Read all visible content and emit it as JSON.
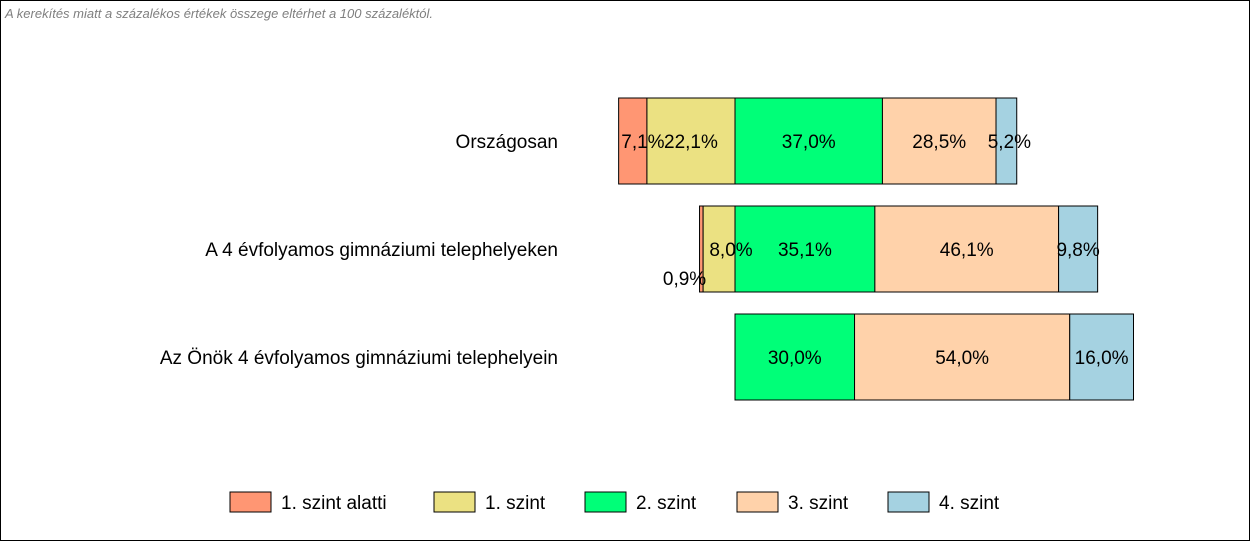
{
  "note": "A kerekítés miatt a  százalékos értékek összege eltérhet a 100 százaléktól.",
  "chart_data": {
    "type": "bar",
    "orientation": "horizontal",
    "stacked": true,
    "diverging": true,
    "categories": [
      "Országosan",
      "A 4 évfolyamos gimnáziumi telephelyeken",
      "Az Önök 4 évfolyamos gimnáziumi telephelyein"
    ],
    "series": [
      {
        "name": "1. szint alatti",
        "color": "#FF9673",
        "values": [
          7.1,
          0.9,
          0.0
        ],
        "labels": [
          "7,1%",
          "0,9%",
          ""
        ]
      },
      {
        "name": "1. szint",
        "color": "#EBE182",
        "values": [
          22.1,
          8.0,
          0.0
        ],
        "labels": [
          "22,1%",
          "8,0%",
          ""
        ]
      },
      {
        "name": "2. szint",
        "color": "#00FF78",
        "values": [
          37.0,
          35.1,
          30.0
        ],
        "labels": [
          "37,0%",
          "35,1%",
          "30,0%"
        ]
      },
      {
        "name": "3. szint",
        "color": "#FFD2AA",
        "values": [
          28.5,
          46.1,
          54.0
        ],
        "labels": [
          "28,5%",
          "46,1%",
          "54,0%"
        ]
      },
      {
        "name": "4. szint",
        "color": "#A5D2E1",
        "values": [
          5.2,
          9.8,
          16.0
        ],
        "labels": [
          "5,2%",
          "9,8%",
          "16,0%"
        ]
      }
    ],
    "legend_position": "bottom",
    "grid": false
  }
}
